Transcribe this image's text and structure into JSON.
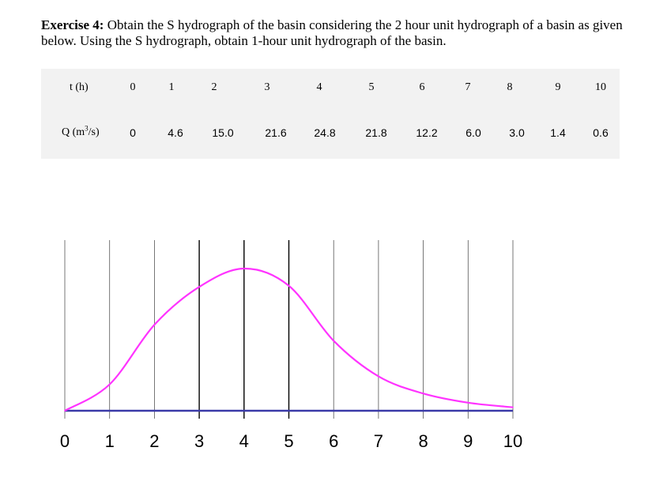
{
  "exercise": {
    "label": "Exercise 4:",
    "text": "Obtain the S hydrograph of the basin considering the 2 hour unit hydrograph of a basin as given below. Using the S hydrograph, obtain 1-hour unit hydrograph of the basin."
  },
  "table": {
    "t_header": "t (h)",
    "q_header_prefix": "Q (m",
    "q_header_sup": "3",
    "q_header_suffix": "/s)",
    "t_values": [
      "0",
      "1",
      "2",
      "3",
      "4",
      "5",
      "6",
      "7",
      "8",
      "9",
      "10"
    ],
    "q_values": [
      "0",
      "4.6",
      "15.0",
      "21.6",
      "24.8",
      "21.8",
      "12.2",
      "6.0",
      "3.0",
      "1.4",
      "0.6"
    ]
  },
  "chart_data": {
    "type": "line",
    "x": [
      0,
      1,
      2,
      3,
      4,
      5,
      6,
      7,
      8,
      9,
      10
    ],
    "series": [
      {
        "color": "#ff33ff",
        "values": [
          0,
          4.6,
          15.0,
          21.6,
          24.8,
          21.8,
          12.2,
          6.0,
          3.0,
          1.4,
          0.6
        ]
      }
    ],
    "x_tick_labels": [
      "0",
      "1",
      "2",
      "3",
      "4",
      "5",
      "6",
      "7",
      "8",
      "9",
      "10"
    ],
    "xlim": [
      0,
      10
    ],
    "grid": "vertical",
    "baseline_color": "#3a3aa8"
  }
}
